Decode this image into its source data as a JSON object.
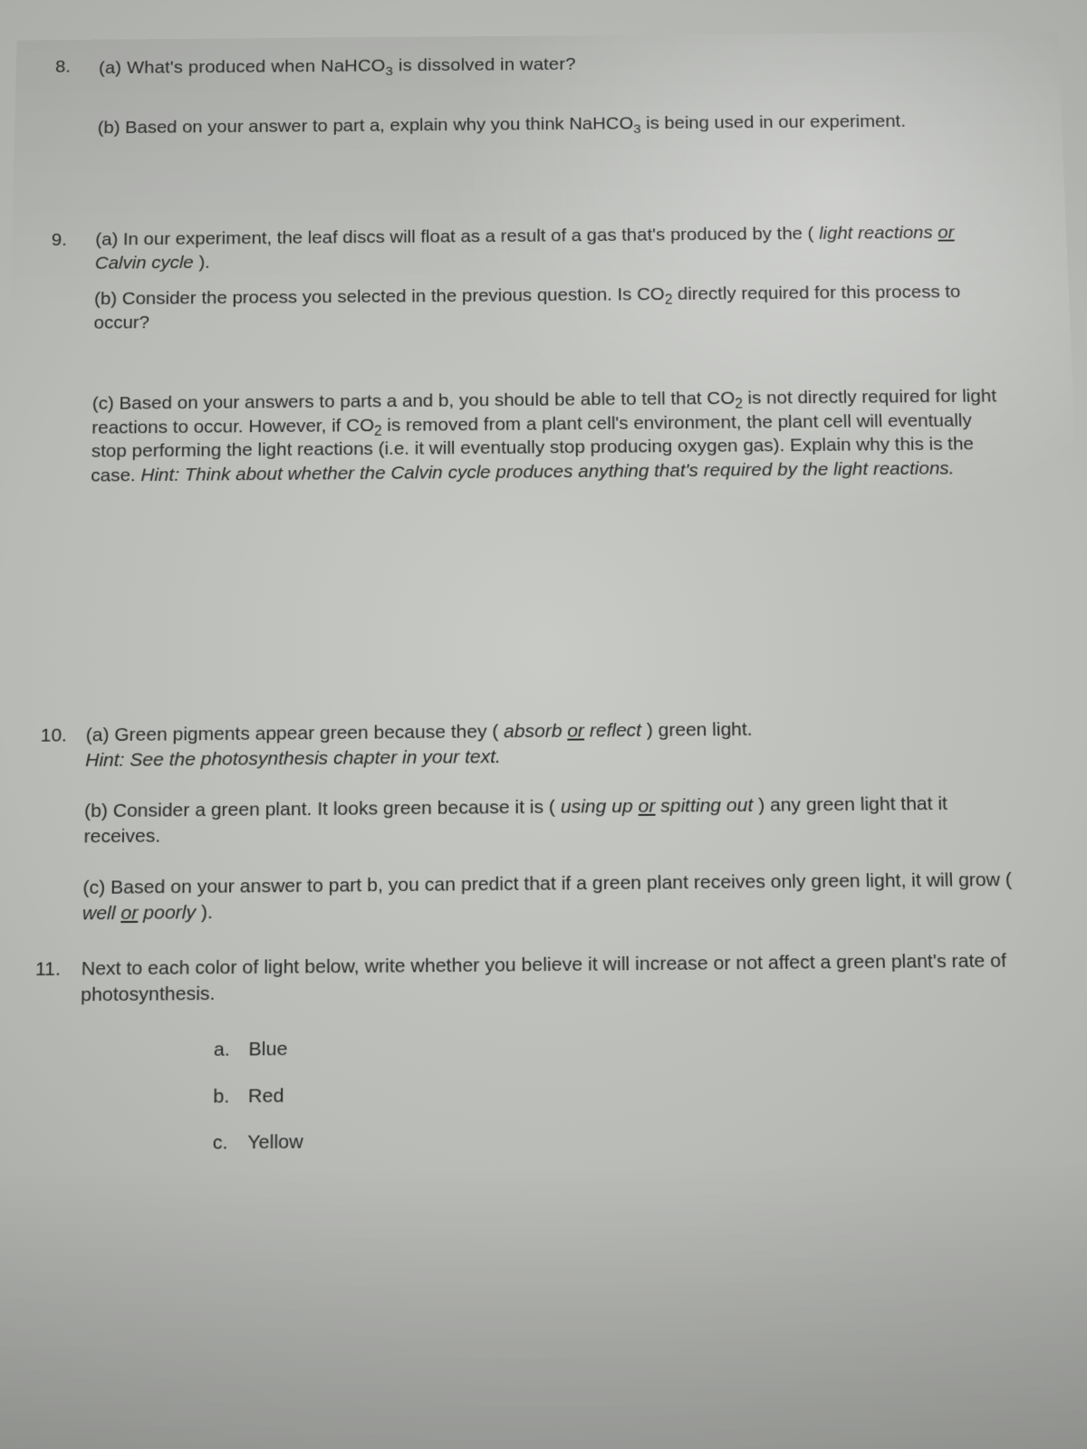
{
  "q8": {
    "number": "8.",
    "a": "(a) What's produced when NaHCO₃ is dissolved in water?",
    "b": "(b) Based on your answer to part a, explain why you think NaHCO₃ is being used in our experiment."
  },
  "q9": {
    "number": "9.",
    "a_pre": "(a) In our experiment, the leaf discs will float as a result of a gas that's produced by the ( ",
    "a_opt1": "light reactions",
    "a_or": "or",
    "a_opt2": "Calvin cycle",
    "a_post": " ).",
    "b": "(b) Consider the process you selected in the previous question.  Is CO₂ directly required for this process to occur?",
    "c_lead": "(c) Based on your answers to parts a and b, you should be able to tell that CO₂ is not directly required for light reactions to occur.  However, if CO₂ is removed from a plant cell's environment, the plant cell will eventually stop performing the light reactions (i.e. it will eventually stop producing oxygen gas).  Explain why this is the case.  ",
    "c_hint": "Hint: Think about whether the Calvin cycle produces anything that's required by the light reactions."
  },
  "q10": {
    "number": "10.",
    "a_pre": "(a) Green pigments appear green because they ( ",
    "a_opt1": "absorb",
    "a_or": "or",
    "a_opt2": "reflect",
    "a_post": " ) green light.",
    "a_hint": "Hint:  See the photosynthesis chapter in your text.",
    "b_pre": "(b) Consider a green plant.  It looks green because it is ( ",
    "b_opt1": "using up",
    "b_or": "or",
    "b_opt2": "spitting out",
    "b_post": " ) any green light that it receives.",
    "c_pre": "(c) Based on your answer to part b, you can predict that if a green plant receives only green light, it will grow ( ",
    "c_opt1": "well",
    "c_or": "or",
    "c_opt2": "poorly",
    "c_post": " )."
  },
  "q11": {
    "number": "11.",
    "text": "Next to each color of light below, write whether you believe it will increase or not affect a green plant's rate of photosynthesis.",
    "items": [
      {
        "letter": "a.",
        "label": "Blue"
      },
      {
        "letter": "b.",
        "label": "Red"
      },
      {
        "letter": "c.",
        "label": "Yellow"
      }
    ]
  }
}
